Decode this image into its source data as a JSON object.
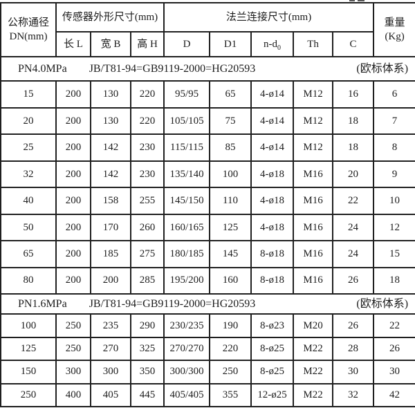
{
  "header": {
    "dn_line1": "公称通径",
    "dn_line2": "DN(mm)",
    "sensor_group": "传感器外形尺寸(mm)",
    "flange_group": "法兰连接尺寸(mm)",
    "weight_line1": "重量",
    "weight_line2": "(Kg)",
    "sub_labels": [
      "长 L",
      "宽 B",
      "高 H",
      "D",
      "D1",
      "n-d",
      "Th",
      "C"
    ],
    "n_d_subscript": "0"
  },
  "sections": [
    {
      "pressure_rating": "PN4.0MPa",
      "standard": "JB/T81-94=GB9119-2000=HG20593",
      "note": "(欧标体系)",
      "rows": [
        [
          "15",
          "200",
          "130",
          "220",
          "95/95",
          "65",
          "4-ø14",
          "M12",
          "16",
          "6"
        ],
        [
          "20",
          "200",
          "130",
          "220",
          "105/105",
          "75",
          "4-ø14",
          "M12",
          "18",
          "7"
        ],
        [
          "25",
          "200",
          "142",
          "230",
          "115/115",
          "85",
          "4-ø14",
          "M12",
          "18",
          "8"
        ],
        [
          "32",
          "200",
          "142",
          "230",
          "135/140",
          "100",
          "4-ø18",
          "M16",
          "20",
          "9"
        ],
        [
          "40",
          "200",
          "158",
          "255",
          "145/150",
          "110",
          "4-ø18",
          "M16",
          "22",
          "10"
        ],
        [
          "50",
          "200",
          "170",
          "260",
          "160/165",
          "125",
          "4-ø18",
          "M16",
          "24",
          "12"
        ],
        [
          "65",
          "200",
          "185",
          "275",
          "180/185",
          "145",
          "8-ø18",
          "M16",
          "24",
          "15"
        ],
        [
          "80",
          "200",
          "200",
          "285",
          "195/200",
          "160",
          "8-ø18",
          "M16",
          "26",
          "18"
        ]
      ]
    },
    {
      "pressure_rating": "PN1.6MPa",
      "standard": "JB/T81-94=GB9119-2000=HG20593",
      "note": "(欧标体系)",
      "rows": [
        [
          "100",
          "250",
          "235",
          "290",
          "230/235",
          "190",
          "8-ø23",
          "M20",
          "26",
          "22"
        ],
        [
          "125",
          "250",
          "270",
          "325",
          "270/270",
          "220",
          "8-ø25",
          "M22",
          "28",
          "26"
        ],
        [
          "150",
          "300",
          "300",
          "350",
          "300/300",
          "250",
          "8-ø25",
          "M22",
          "30",
          "30"
        ],
        [
          "250",
          "400",
          "405",
          "445",
          "405/405",
          "355",
          "12-ø25",
          "M22",
          "32",
          "42"
        ]
      ]
    }
  ],
  "colors": {
    "border": "#1f1f1f",
    "background": "#ffffff",
    "text": "#1c1c1c"
  }
}
